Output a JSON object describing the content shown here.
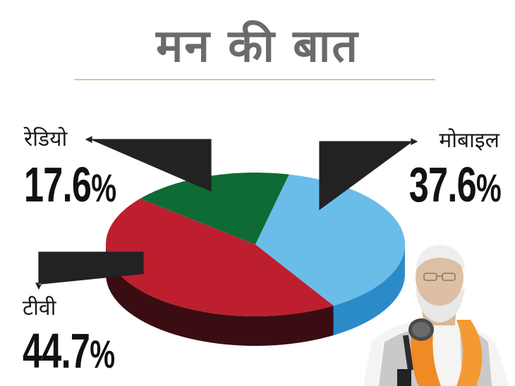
{
  "page_title": "मन की बात",
  "colors": {
    "mobile": "#6bbde9",
    "mobile_side": "#2b8bc9",
    "tv": "#bd1f2e",
    "tv_side": "#3a0d12",
    "radio": "#0e6b35",
    "title": "#6b6b6b",
    "rule": "#d8c49a"
  },
  "chart_data": {
    "type": "pie",
    "title": "मन की बात",
    "slices": [
      {
        "label": "मोबाइल",
        "value": 37.6,
        "display": "37.6"
      },
      {
        "label": "टीवी",
        "value": 44.7,
        "display": "44.7"
      },
      {
        "label": "रेडियो",
        "value": 17.6,
        "display": "17.6"
      }
    ],
    "unit": "%",
    "three_d": true
  },
  "photo": {
    "icon": "person-at-microphone-photo"
  }
}
